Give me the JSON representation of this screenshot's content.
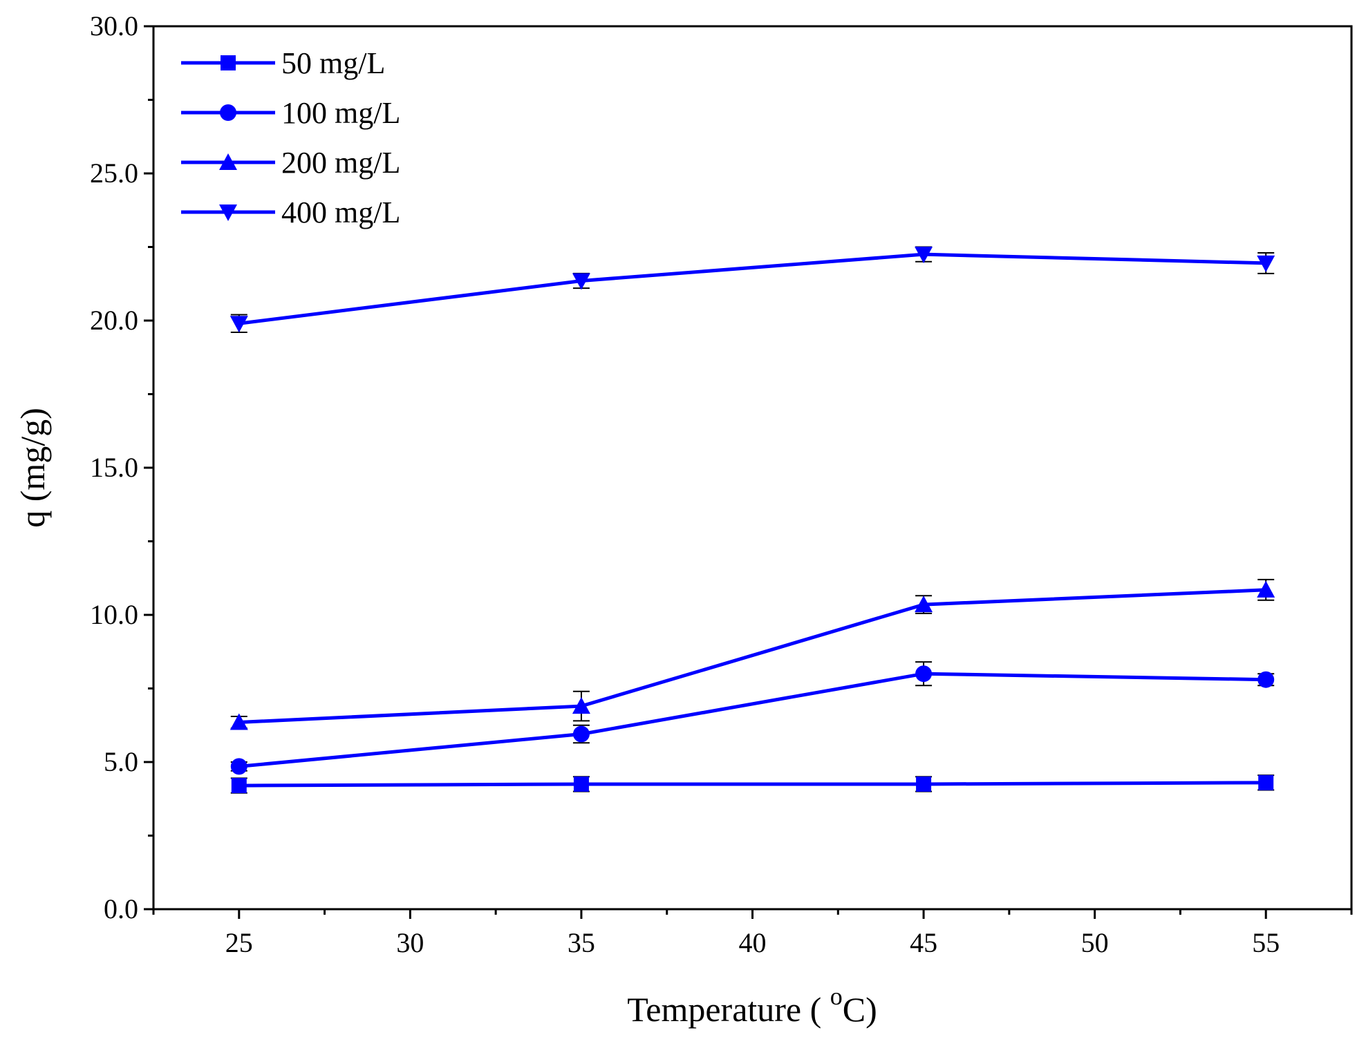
{
  "chart_data": {
    "type": "line",
    "title": "",
    "xlabel": "Temperature",
    "xlabel_unit_prefix": "( ",
    "xlabel_unit_superscript": "o",
    "xlabel_unit_suffix": "C)",
    "ylabel": "q (mg/g)",
    "xlim": [
      22.5,
      57.5
    ],
    "ylim": [
      0,
      30
    ],
    "xticks": [
      25,
      30,
      35,
      40,
      45,
      50,
      55
    ],
    "xtick_labels": [
      "25",
      "30",
      "35",
      "40",
      "45",
      "50",
      "55"
    ],
    "yticks": [
      0,
      5,
      10,
      15,
      20,
      25,
      30
    ],
    "ytick_labels": [
      "0.0",
      "5.0",
      "10.0",
      "15.0",
      "20.0",
      "25.0",
      "30.0"
    ],
    "legend_position": "top-left",
    "grid": false,
    "line_color": "#0000ff",
    "x": [
      25,
      35,
      45,
      55
    ],
    "series": [
      {
        "name": "50 mg/L",
        "marker": "square",
        "values": [
          4.2,
          4.25,
          4.25,
          4.3
        ],
        "errors": [
          0.25,
          0.25,
          0.25,
          0.25
        ]
      },
      {
        "name": "100 mg/L",
        "marker": "circle",
        "values": [
          4.85,
          5.95,
          8.0,
          7.8
        ],
        "errors": [
          0.15,
          0.3,
          0.4,
          0.2
        ]
      },
      {
        "name": "200 mg/L",
        "marker": "triangle-up",
        "values": [
          6.35,
          6.9,
          10.35,
          10.85
        ],
        "errors": [
          0.2,
          0.5,
          0.3,
          0.35
        ]
      },
      {
        "name": "400 mg/L",
        "marker": "triangle-down",
        "values": [
          19.9,
          21.35,
          22.25,
          21.95
        ],
        "errors": [
          0.3,
          0.25,
          0.25,
          0.35
        ]
      }
    ]
  }
}
